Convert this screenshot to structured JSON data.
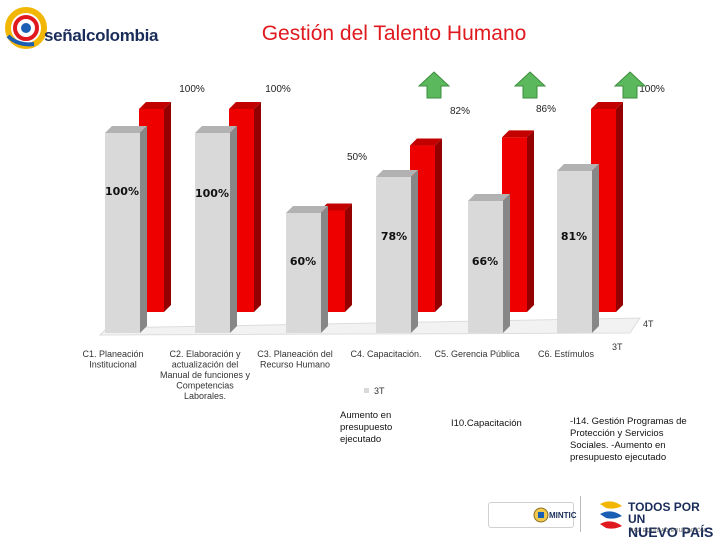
{
  "header": {
    "logo_text": "señalcolombia",
    "title": "Gestión del Talento Humano"
  },
  "footer": {
    "mintic_label": "MINTIC",
    "brand_line1": "TODOS POR UN",
    "brand_line2": "NUEVO PAÍS",
    "tagline": "PAZ  EQUIDAD  EDUCACIÓN"
  },
  "notes": [
    "Aumento en presupuesto ejecutado",
    "I10.Capacitación",
    "-I14. Gestión Programas de Protección y Servicios Sociales. -Aumento en presupuesto ejecutado"
  ],
  "colors": {
    "red_series": "#ee0000",
    "gray_series": "#d9d9d9",
    "arrow": "#5cb85c",
    "title": "#e0191f"
  },
  "chart_data": {
    "type": "bar",
    "style": "3d-clustered",
    "categories": [
      "C1. Planeación Institucional",
      "C2. Elaboración y actualización del Manual de funciones y Competencias Laborales.",
      "C3. Planeación del Recurso Humano",
      "C4. Capacitación.",
      "C5. Gerencia Pública",
      "C6. Estímulos"
    ],
    "series": [
      {
        "name": "3T",
        "color": "#d9d9d9",
        "values": [
          100,
          100,
          60,
          78,
          66,
          81
        ],
        "labels": [
          "100%",
          "100%",
          "60%",
          "78%",
          "66%",
          "81%"
        ]
      },
      {
        "name": "4T",
        "color": "#ee0000",
        "values": [
          100,
          100,
          50,
          82,
          86,
          100
        ],
        "labels": [
          "100%",
          "100%",
          "50%",
          "82%",
          "86%",
          "100%"
        ]
      }
    ],
    "improvement_arrows": [
      "C4. Capacitación.",
      "C5. Gerencia Pública",
      "C6. Estímulos"
    ],
    "legend": [
      "3T",
      "4T"
    ],
    "ylim": [
      0,
      100
    ]
  }
}
